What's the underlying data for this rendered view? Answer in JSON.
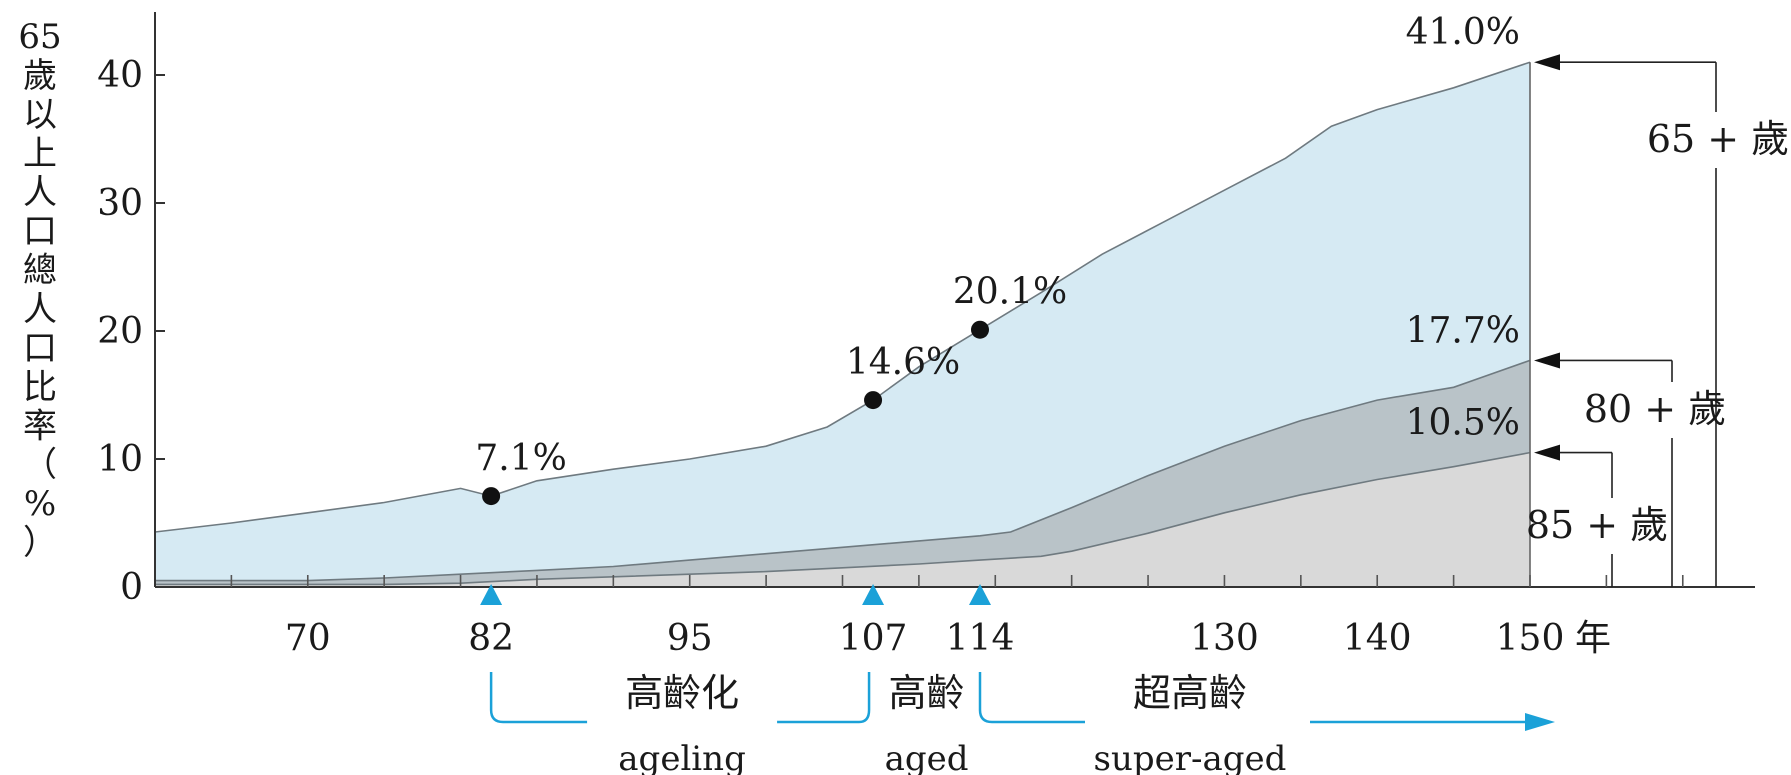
{
  "chart_data": {
    "type": "area",
    "xlabel": "年",
    "ylabel": "65歲以上人口總人口比率（%）",
    "xlim": [
      60,
      150
    ],
    "ylim": [
      0,
      45
    ],
    "xticks_labeled": [
      70,
      82,
      95,
      107,
      114,
      130,
      140,
      150
    ],
    "xticks_minor": [
      65,
      70,
      75,
      80,
      85,
      90,
      95,
      100,
      105,
      110,
      115,
      120,
      125,
      130,
      135,
      140,
      145,
      150,
      155,
      160
    ],
    "yticks": [
      0,
      10,
      20,
      30,
      40
    ],
    "series": [
      {
        "name": "65 + 歲",
        "color": "#d6eaf3",
        "x": [
          60,
          65,
          70,
          75,
          80,
          82,
          85,
          90,
          95,
          100,
          104,
          107,
          110,
          114,
          118,
          122,
          126,
          130,
          134,
          137,
          140,
          145,
          150
        ],
        "y": [
          4.3,
          5.0,
          5.8,
          6.6,
          7.7,
          7.1,
          8.3,
          9.2,
          10.0,
          11.0,
          12.5,
          14.6,
          17.2,
          20.1,
          23.0,
          26.0,
          28.5,
          31.0,
          33.5,
          36.0,
          37.3,
          39.0,
          41.0
        ]
      },
      {
        "name": "80 + 歲",
        "color": "#b9c3c8",
        "x": [
          60,
          65,
          70,
          75,
          80,
          85,
          90,
          95,
          100,
          105,
          110,
          114,
          116,
          120,
          125,
          130,
          135,
          140,
          145,
          150
        ],
        "y": [
          0.5,
          0.5,
          0.5,
          0.7,
          1.0,
          1.3,
          1.6,
          2.1,
          2.6,
          3.1,
          3.6,
          4.0,
          4.3,
          6.2,
          8.7,
          11.0,
          13.0,
          14.6,
          15.6,
          17.7
        ]
      },
      {
        "name": "85 + 歲",
        "color": "#d9d9d9",
        "x": [
          60,
          65,
          70,
          75,
          80,
          85,
          90,
          95,
          100,
          105,
          110,
          114,
          118,
          120,
          125,
          130,
          135,
          140,
          145,
          150
        ],
        "y": [
          0.2,
          0.2,
          0.2,
          0.2,
          0.3,
          0.6,
          0.8,
          1.0,
          1.2,
          1.5,
          1.8,
          2.1,
          2.4,
          2.8,
          4.2,
          5.8,
          7.2,
          8.4,
          9.4,
          10.5
        ]
      }
    ],
    "points": [
      {
        "x": 82,
        "y": 7.1,
        "label": "7.1%"
      },
      {
        "x": 107,
        "y": 14.6,
        "label": "14.6%"
      },
      {
        "x": 114,
        "y": 20.1,
        "label": "20.1%"
      }
    ],
    "end_labels": [
      {
        "series": "65 + 歲",
        "value": 41.0,
        "label": "41.0%"
      },
      {
        "series": "80 + 歲",
        "value": 17.7,
        "label": "17.7%"
      },
      {
        "series": "85 + 歲",
        "value": 10.5,
        "label": "10.5%"
      }
    ],
    "phases": [
      {
        "start": 82,
        "end": 107,
        "label_cn": "高齡化",
        "label_en": "ageling"
      },
      {
        "start": 107,
        "end": 114,
        "label_cn": "高齡",
        "label_en": "aged"
      },
      {
        "start": 114,
        "end": 155,
        "label_cn": "超高齡",
        "label_en": "super-aged"
      }
    ],
    "phase_marker_color": "#1ba1d8",
    "grid": false
  }
}
